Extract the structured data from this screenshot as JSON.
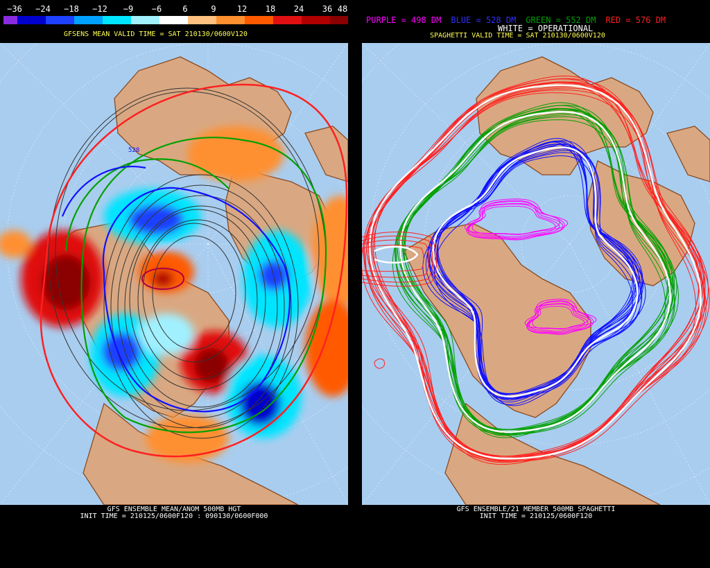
{
  "left": {
    "colorbar": {
      "ticks": [
        "−36",
        "−24",
        "−18",
        "−12",
        "−9",
        "−6",
        "6",
        "9",
        "12",
        "18",
        "24",
        "36",
        "48"
      ],
      "colors": [
        "#8a2be2",
        "#0000cd",
        "#1e40ff",
        "#00a0ff",
        "#00e5ff",
        "#a0f0ff",
        "#ffffff",
        "#ffc080",
        "#ff9030",
        "#ff5a00",
        "#e01010",
        "#b00000",
        "#8b0000",
        "#800080"
      ]
    },
    "subtitle": "GFSENS MEAN VALID TIME = SAT 210130/0600V120",
    "contour_label": "528",
    "footer_line1": "GFS ENSEMBLE MEAN/ANOM 500MB HGT",
    "footer_line2": "INIT TIME = 210125/0600F120 : 090130/0600F000"
  },
  "right": {
    "legend": [
      {
        "text": "PURPLE = 498 DM",
        "color": "#ff00ff"
      },
      {
        "text": "BLUE = 528 DM",
        "color": "#3030ff"
      },
      {
        "text": "GREEN = 552 DM",
        "color": "#00a000"
      },
      {
        "text": "RED = 576 DM",
        "color": "#ff2020"
      }
    ],
    "operational_label": "WHITE = OPERATIONAL",
    "subtitle": "SPAGHETTI VALID TIME = SAT 210130/0600V120",
    "footer_line1": "GFS ENSEMBLE/21 MEMBER 500MB SPAGHETTI",
    "footer_line2": "INIT TIME = 210125/0600F120"
  },
  "colors": {
    "ocean": "#a9cdef",
    "land": "#d9a882",
    "coast": "#8a4a20",
    "background": "#000000"
  }
}
